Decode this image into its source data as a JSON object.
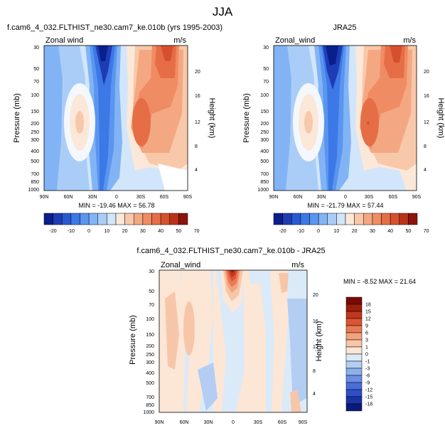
{
  "page_title": "JJA",
  "colors": {
    "blues": [
      "#0a1e8c",
      "#1e3cb4",
      "#2a5ad2",
      "#3c78e6",
      "#5a96f0",
      "#82b4f5",
      "#aacdf8",
      "#d2e6fb"
    ],
    "reds": [
      "#fbe8d8",
      "#f8c8aa",
      "#f4a882",
      "#f08c64",
      "#e66e46",
      "#d7502d",
      "#b93219",
      "#8c140a"
    ],
    "diff_blues": [
      "#dbeaf8",
      "#b4cdf2",
      "#8cb0ec",
      "#6a8fe4",
      "#4a6ed9",
      "#2f4fc8",
      "#1a34a8",
      "#0a1a78"
    ],
    "diff_reds": [
      "#fce6d6",
      "#f7c6a8",
      "#f2a37e",
      "#ea7a55",
      "#dc5533",
      "#c3361c",
      "#9e1e0c",
      "#7a0a04"
    ]
  },
  "panels": {
    "p1": {
      "title": "f.cam6_4_032.FLTHIST_ne30.cam7_ke.010b (yrs 1995-2003)",
      "left_label": "Zonal wind",
      "units": "m/s",
      "y_axis_label": "Pressure (mb)",
      "right_axis_label": "Height (km)",
      "stats": "MIN = -19.46   MAX = 56.78"
    },
    "p2": {
      "title": "JRA25",
      "left_label": "Zonal_wind",
      "units": "m/s",
      "y_axis_label": "Pressure (mb)",
      "right_axis_label": "Height (km)",
      "stats": "MIN = -21.79   MAX = 57.44"
    },
    "p3": {
      "title": "f.cam6_4_032.FLTHIST_ne30.cam7_ke.010b - JRA25",
      "left_label": "Zonal_wind",
      "units": "m/s",
      "y_axis_label": "Pressure (mb)",
      "right_axis_label": "Height (km)",
      "stats": "MIN = -8.52   MAX = 21.64"
    }
  },
  "chart_data": [
    {
      "type": "heatmap",
      "title": "f.cam6_4_032.FLTHIST_ne30.cam7_ke.010b (yrs 1995-2003)",
      "xlabel": "",
      "ylabel": "Pressure (mb)",
      "y2label": "Height (km)",
      "x_ticks": [
        "90N",
        "60N",
        "30N",
        "0",
        "30S",
        "60S",
        "90S"
      ],
      "y_ticks": [
        "30",
        "50",
        "70",
        "100",
        "150",
        "200",
        "250",
        "300",
        "400",
        "500",
        "700",
        "850",
        "1000"
      ],
      "y2_ticks": [
        "4",
        "8",
        "12",
        "16",
        "20"
      ],
      "colorbar_ticks": [
        "-20",
        "-10",
        "0",
        "10",
        "20",
        "30",
        "40",
        "50",
        "70"
      ],
      "min": -19.46,
      "max": 56.78,
      "units": "m/s"
    },
    {
      "type": "heatmap",
      "title": "JRA25",
      "ylabel": "Pressure (mb)",
      "y2label": "Height (km)",
      "x_ticks": [
        "90N",
        "60N",
        "30N",
        "0",
        "30S",
        "60S",
        "90S"
      ],
      "y_ticks": [
        "30",
        "50",
        "70",
        "100",
        "150",
        "200",
        "250",
        "300",
        "400",
        "500",
        "700",
        "850",
        "1000"
      ],
      "y2_ticks": [
        "4",
        "8",
        "12",
        "16",
        "20"
      ],
      "colorbar_ticks": [
        "-20",
        "-10",
        "0",
        "10",
        "20",
        "30",
        "40",
        "50",
        "70"
      ],
      "min": -21.79,
      "max": 57.44,
      "units": "m/s"
    },
    {
      "type": "heatmap",
      "title": "f.cam6_4_032.FLTHIST_ne30.cam7_ke.010b - JRA25",
      "ylabel": "Pressure (mb)",
      "y2label": "Height (km)",
      "x_ticks": [
        "90N",
        "60N",
        "30N",
        "0",
        "30S",
        "60S",
        "90S"
      ],
      "y_ticks": [
        "30",
        "50",
        "70",
        "100",
        "150",
        "200",
        "250",
        "300",
        "400",
        "500",
        "700",
        "850",
        "1000"
      ],
      "y2_ticks": [
        "4",
        "8",
        "12",
        "16",
        "20"
      ],
      "colorbar_ticks": [
        "18",
        "15",
        "12",
        "9",
        "6",
        "3",
        "1",
        "0",
        "-1",
        "-3",
        "-6",
        "-9",
        "-12",
        "-15",
        "-18"
      ],
      "min": -8.52,
      "max": 21.64,
      "units": "m/s"
    }
  ]
}
